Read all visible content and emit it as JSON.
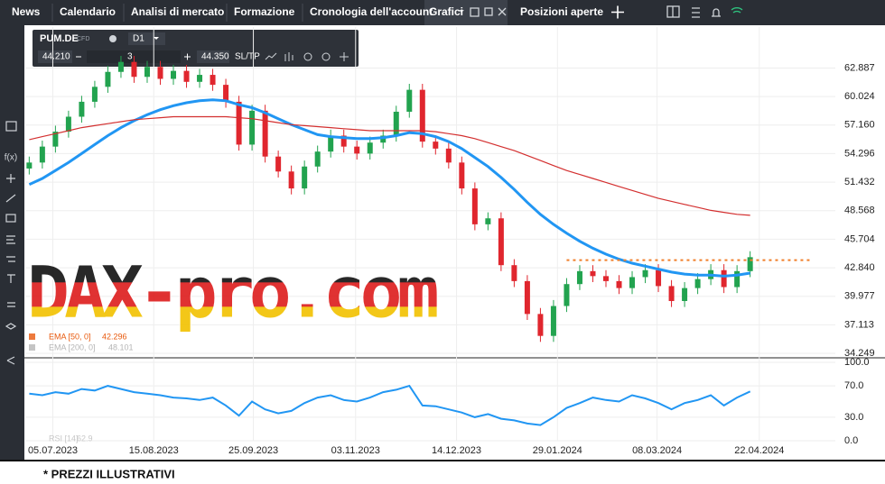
{
  "nav": [
    "News",
    "Calendario",
    "Analisi di mercato",
    "Formazione",
    "Cronologia dell'account",
    "Grafici",
    "Posizioni aperte"
  ],
  "toolbar": {
    "symbol": "PUM.DE",
    "instrument": "CFD",
    "timeframe": "D1",
    "bid": "44.210",
    "volume": "3",
    "ask": "44.350",
    "sltp": "SL/TP"
  },
  "watermark": "DAX-pro.com",
  "footer": "* PREZZI ILLUSTRATIVI",
  "chart_data": {
    "type": "candlestick",
    "x": [
      0,
      1,
      2,
      3,
      4,
      5,
      6,
      7,
      8,
      9,
      10,
      11,
      12,
      13,
      14,
      15,
      16,
      17,
      18,
      19,
      20,
      21,
      22,
      23,
      24,
      25,
      26,
      27,
      28,
      29,
      30,
      31,
      32,
      33,
      34,
      35,
      36,
      37,
      38,
      39,
      40,
      41,
      42,
      43,
      44,
      45,
      46,
      47,
      48,
      49,
      50,
      51,
      52,
      53,
      54,
      55
    ],
    "open": [
      52.8,
      53.4,
      55.0,
      56.5,
      58.0,
      59.5,
      61.0,
      62.5,
      63.5,
      62.0,
      63.0,
      61.8,
      62.6,
      61.5,
      62.2,
      61.2,
      59.5,
      55.2,
      58.6,
      54.0,
      52.5,
      50.8,
      53.0,
      54.5,
      56.1,
      55.0,
      54.3,
      55.4,
      56.1,
      58.5,
      60.7,
      55.5,
      54.8,
      53.4,
      50.8,
      47.2,
      47.8,
      43.1,
      41.5,
      38.2,
      36.0,
      39.0,
      41.2,
      42.5,
      42.0,
      41.5,
      40.8,
      41.9,
      42.6,
      41.0,
      39.5,
      40.8,
      41.7,
      42.6,
      40.9,
      42.5
    ],
    "high": [
      54.0,
      55.6,
      57.1,
      58.6,
      60.1,
      61.6,
      63.1,
      64.1,
      64.1,
      63.6,
      63.6,
      63.2,
      63.2,
      62.8,
      62.8,
      61.8,
      60.1,
      59.2,
      59.2,
      54.6,
      53.1,
      53.6,
      55.1,
      56.7,
      56.7,
      55.6,
      56.0,
      56.7,
      59.1,
      61.3,
      61.3,
      56.1,
      55.4,
      54.0,
      51.4,
      48.4,
      48.4,
      43.7,
      42.1,
      38.8,
      39.6,
      41.8,
      43.1,
      43.1,
      42.6,
      42.1,
      42.5,
      43.2,
      43.2,
      41.6,
      41.4,
      42.3,
      43.2,
      43.2,
      43.1,
      44.5
    ],
    "low": [
      52.2,
      52.8,
      54.4,
      55.9,
      57.4,
      58.9,
      60.4,
      61.9,
      61.4,
      61.4,
      61.2,
      61.2,
      60.9,
      60.9,
      60.6,
      58.9,
      54.6,
      54.6,
      53.4,
      51.9,
      50.2,
      50.2,
      52.4,
      53.9,
      54.4,
      53.7,
      53.7,
      54.8,
      55.5,
      57.9,
      54.9,
      54.2,
      52.8,
      50.2,
      46.6,
      46.6,
      42.5,
      40.9,
      37.6,
      35.4,
      35.4,
      38.4,
      40.6,
      41.4,
      40.9,
      40.2,
      40.2,
      41.3,
      40.4,
      38.9,
      38.9,
      40.2,
      41.1,
      40.3,
      40.3,
      41.9
    ],
    "close": [
      53.4,
      55.0,
      56.5,
      58.0,
      59.5,
      61.0,
      62.5,
      63.5,
      62.0,
      63.0,
      61.8,
      62.6,
      61.5,
      62.2,
      61.2,
      59.5,
      55.2,
      58.6,
      54.0,
      52.5,
      50.8,
      53.0,
      54.5,
      56.1,
      55.0,
      54.3,
      55.4,
      56.1,
      58.5,
      60.7,
      55.5,
      54.8,
      53.4,
      50.8,
      47.2,
      47.8,
      43.1,
      41.5,
      38.2,
      36.0,
      39.0,
      41.2,
      42.5,
      42.0,
      41.5,
      40.8,
      41.9,
      42.6,
      41.0,
      39.5,
      40.8,
      41.7,
      42.6,
      40.9,
      42.5,
      43.9
    ],
    "up_color": "#22a34f",
    "down_color": "#e0262e",
    "series": [
      {
        "name": "EMA [50, 0]",
        "last": 42.296,
        "color": "#2196f3",
        "values": [
          51.2,
          51.8,
          52.6,
          53.4,
          54.3,
          55.2,
          56.1,
          56.9,
          57.6,
          58.2,
          58.7,
          59.1,
          59.4,
          59.6,
          59.7,
          59.6,
          59.2,
          58.9,
          58.4,
          57.8,
          57.2,
          56.7,
          56.2,
          56.0,
          55.9,
          55.8,
          55.8,
          55.9,
          56.1,
          56.4,
          56.3,
          56.0,
          55.5,
          54.8,
          53.9,
          53.0,
          51.9,
          50.7,
          49.4,
          48.2,
          47.2,
          46.3,
          45.5,
          44.8,
          44.2,
          43.7,
          43.3,
          43.0,
          42.7,
          42.4,
          42.2,
          42.1,
          42.1,
          42.0,
          42.1,
          42.3
        ]
      },
      {
        "name": "EMA [200, 0]",
        "last": 48.101,
        "color": "#d32f2f",
        "values": [
          55.7,
          56.0,
          56.3,
          56.6,
          56.9,
          57.1,
          57.3,
          57.5,
          57.7,
          57.8,
          57.9,
          58.0,
          58.0,
          58.0,
          58.0,
          58.0,
          57.9,
          57.8,
          57.6,
          57.4,
          57.2,
          57.1,
          57.0,
          56.9,
          56.8,
          56.7,
          56.6,
          56.6,
          56.6,
          56.6,
          56.6,
          56.5,
          56.3,
          56.1,
          55.8,
          55.4,
          55.0,
          54.6,
          54.1,
          53.6,
          53.1,
          52.6,
          52.2,
          51.8,
          51.4,
          51.0,
          50.6,
          50.2,
          49.8,
          49.5,
          49.2,
          48.9,
          48.6,
          48.4,
          48.2,
          48.1
        ]
      }
    ],
    "level": {
      "value": 43.6,
      "x": [
        41,
        59.7
      ],
      "color": "#f07f2a"
    },
    "xlim": [
      -0.3,
      61.5
    ],
    "xticks": [
      {
        "value": 1.8,
        "label": "05.07.2023"
      },
      {
        "value": 9.5,
        "label": "15.08.2023"
      },
      {
        "value": 17.1,
        "label": "25.09.2023"
      },
      {
        "value": 24.9,
        "label": "03.11.2023"
      },
      {
        "value": 32.6,
        "label": "14.12.2023"
      },
      {
        "value": 40.3,
        "label": "29.01.2024"
      },
      {
        "value": 47.9,
        "label": "08.03.2024"
      },
      {
        "value": 55.7,
        "label": "22.04.2024"
      }
    ],
    "ylim": [
      33.8,
      67.0
    ],
    "yticks": [
      62.887,
      60.024,
      {
        "value": 57.16,
        "label": "57.160"
      },
      54.296,
      51.432,
      48.568,
      45.704,
      {
        "value": 42.84,
        "label": "42.840"
      },
      39.977,
      37.113,
      34.249
    ],
    "grid": true,
    "rsi": {
      "name": "RSI [14]",
      "last": 62.9,
      "color": "#2196f3",
      "values": [
        60,
        58,
        62,
        60,
        66,
        64,
        70,
        66,
        62,
        60,
        58,
        55,
        54,
        52,
        55,
        45,
        32,
        50,
        40,
        35,
        38,
        48,
        55,
        58,
        52,
        50,
        55,
        62,
        65,
        70,
        45,
        44,
        40,
        36,
        30,
        34,
        28,
        26,
        22,
        20,
        30,
        42,
        48,
        55,
        52,
        50,
        58,
        54,
        48,
        40,
        48,
        52,
        58,
        45,
        55,
        62.9
      ],
      "ylim": [
        0,
        100
      ],
      "yticks": [
        {
          "value": 100,
          "label": "100.0"
        },
        {
          "value": 70,
          "label": "70.0"
        },
        {
          "value": 30,
          "label": "30.0"
        },
        {
          "value": 0,
          "label": "0.0"
        }
      ]
    }
  }
}
